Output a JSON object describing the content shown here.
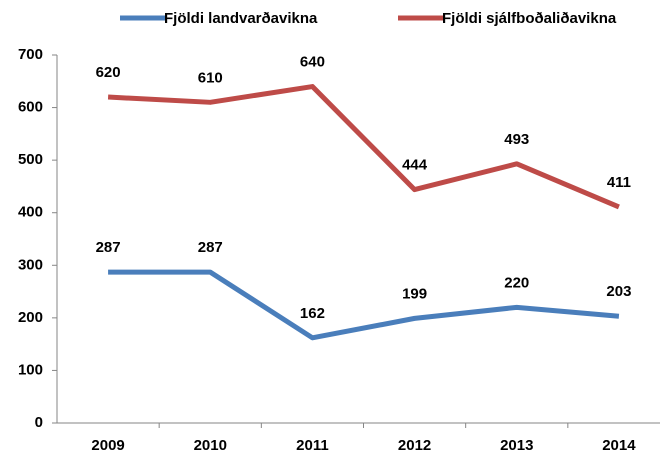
{
  "chart_data": {
    "type": "line",
    "categories": [
      "2009",
      "2010",
      "2011",
      "2012",
      "2013",
      "2014"
    ],
    "series": [
      {
        "name": "Fjöldi landvarðavikna",
        "color": "#4a7ebb",
        "values": [
          287,
          287,
          162,
          199,
          220,
          203
        ]
      },
      {
        "name": "Fjöldi sjálfboðaliðavikna",
        "color": "#be4b48",
        "values": [
          620,
          610,
          640,
          444,
          493,
          411
        ]
      }
    ],
    "ylim": [
      0,
      700
    ],
    "yticks": [
      0,
      100,
      200,
      300,
      400,
      500,
      600,
      700
    ],
    "grid": false,
    "legend": "top"
  }
}
